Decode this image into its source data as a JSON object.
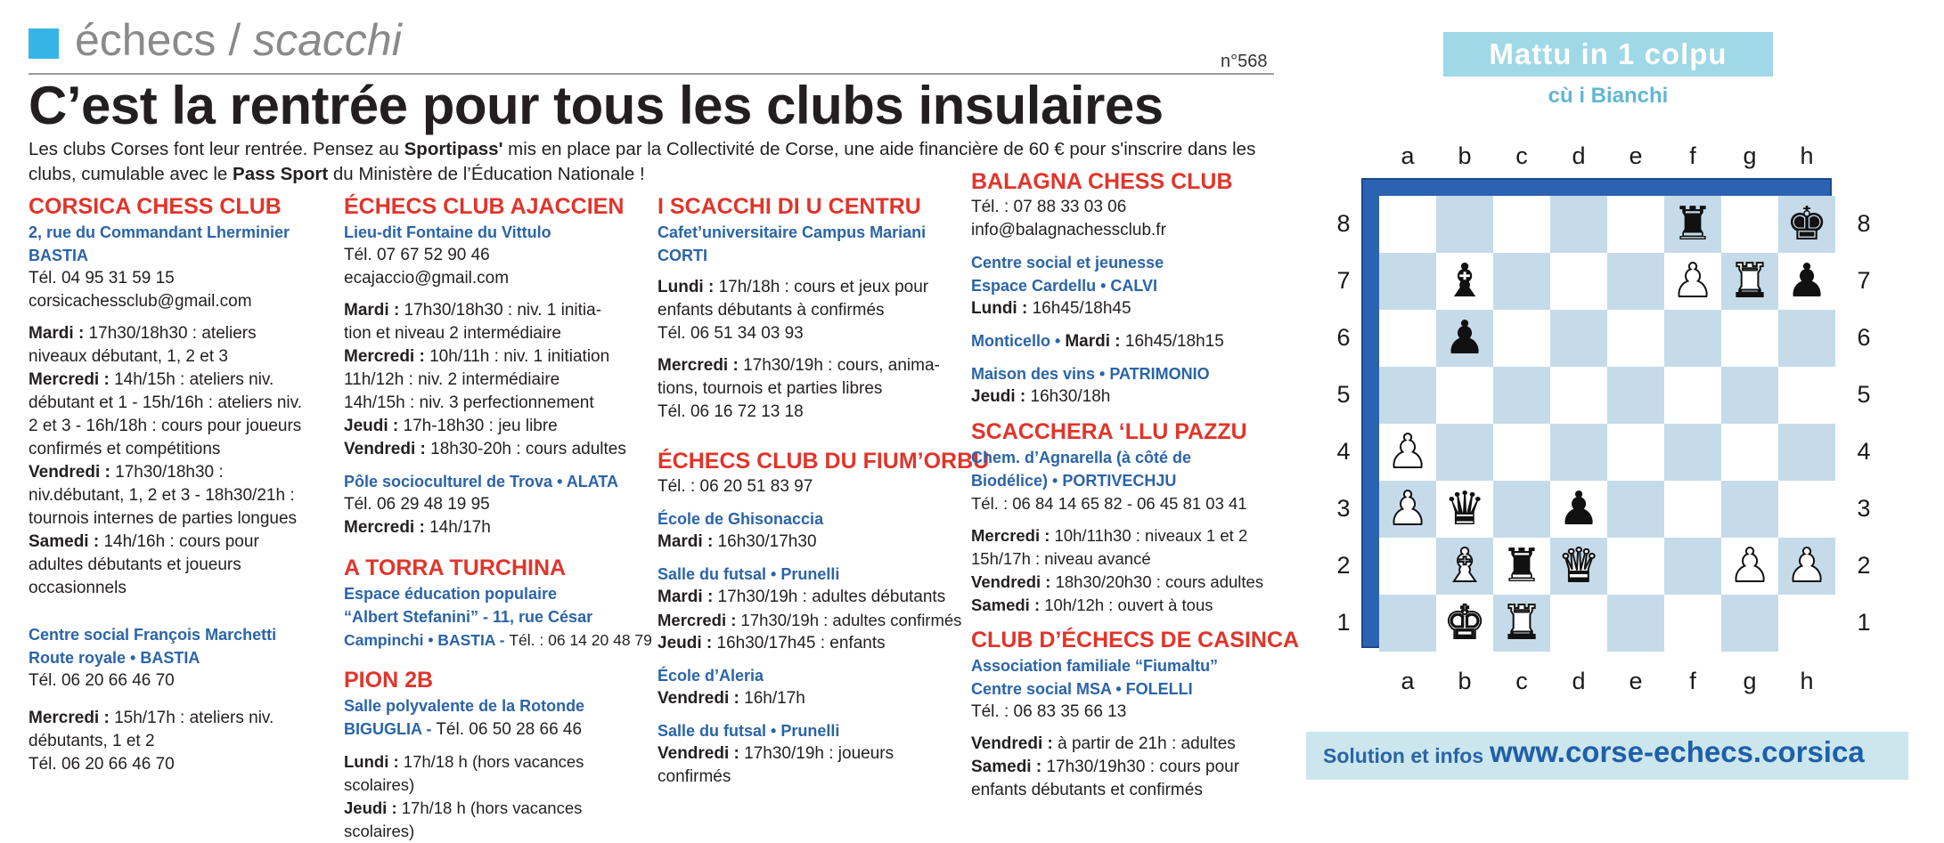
{
  "header": {
    "rubric_fr": "échecs",
    "rubric_sep": " / ",
    "rubric_it": "scacchi",
    "issue": "n°568",
    "headline": "C’est la rentrée pour tous les clubs insulaires"
  },
  "intro": {
    "t1": "Les clubs Corses font leur rentrée. Pensez au ",
    "b1": "Sportipass'",
    "t2": " mis en place par la Collectivité de Corse, une aide financière de 60 € pour s'inscrire dans les clubs, cumulable avec le ",
    "b2": "Pass Sport",
    "t3": " du Ministère de l’Éducation Nationale !"
  },
  "col1": {
    "name": "CORSICA CHESS CLUB",
    "addr1": "2, rue du Commandant Lherminier",
    "addr2": "BASTIA",
    "tel": "Tél. 04 95 31 59 15",
    "email": "corsicachessclub@gmail.com",
    "s1_day": "Mardi :",
    "s1_text": " 17h30/18h30 : ateliers",
    "s1_l2": "niveaux débutant, 1, 2 et 3",
    "s2_day": "Mercredi :",
    "s2_text": " 14h/15h : ateliers niv.",
    "s2_l2": "débutant et 1 - 15h/16h : ateliers niv.",
    "s2_l3": "2 et 3 - 16h/18h : cours pour joueurs",
    "s2_l4": "confirmés et compétitions",
    "s3_day": "Vendredi :",
    "s3_text": " 17h30/18h30 :",
    "s3_l2": "niv.débutant, 1, 2 et 3 - 18h30/21h :",
    "s3_l3": "tournois internes de parties longues",
    "s4_day": "Samedi :",
    "s4_text": " 14h/16h : cours pour",
    "s4_l2": "adultes débutants et joueurs",
    "s4_l3": "occasionnels",
    "loc2_l1": "Centre social François Marchetti",
    "loc2_l2": "Route royale • BASTIA",
    "loc2_tel": "Tél. 06 20 66 46 70",
    "s5_day": "Mercredi :",
    "s5_text": " 15h/17h : ateliers niv.",
    "s5_l2": "débutants, 1 et 2",
    "s5_tel": "Tél. 06 20 66 46 70"
  },
  "col2": {
    "name": "ÉCHECS CLUB AJACCIEN",
    "addr": "Lieu-dit Fontaine du Vittulo",
    "tel": "Tél. 07 67 52 90 46",
    "email": "ecajaccio@gmail.com",
    "s1_day": "Mardi :",
    "s1_text": " 17h30/18h30 : niv. 1 initia-",
    "s1_l2": "tion et niveau 2 intermédiaire",
    "s2_day": "Mercredi :",
    "s2_text": " 10h/11h : niv. 1 initiation",
    "s2_l2": "11h/12h : niv. 2 intermédiaire",
    "s2_l3": "14h/15h : niv. 3 perfectionnement",
    "s3_day": "Jeudi :",
    "s3_text": " 17h-18h30 : jeu libre",
    "s4_day": "Vendredi :",
    "s4_text": " 18h30-20h : cours adultes",
    "loc2": "Pôle socioculturel de Trova • ALATA",
    "loc2_tel": "Tél. 06 29 48 19 95",
    "loc2_s_day": "Mercredi :",
    "loc2_s_text": " 14h/17h",
    "name2": "A TORRA TURCHINA",
    "c2_l1": "Espace éducation populaire",
    "c2_l2": "“Albert Stefanini” - 11, rue César",
    "c2_l3a": "Campinchi • BASTIA - ",
    "c2_l3b": "Tél. : 06 14 20 48 79",
    "name3": "PION 2B",
    "c3_l1": "Salle polyvalente de la Rotonde",
    "c3_l2a": "BIGUGLIA - ",
    "c3_l2b": "Tél. 06 50 28 66 46",
    "c3_s1_day": "Lundi :",
    "c3_s1_text": " 17h/18 h (hors vacances scolaires)",
    "c3_s2_day": "Jeudi :",
    "c3_s2_text": " 17h/18 h (hors vacances scolaires)"
  },
  "col3": {
    "name": "I SCACCHI DI U CENTRU",
    "addr1": "Cafet’universitaire Campus Mariani",
    "addr2": "CORTI",
    "s1_day": "Lundi :",
    "s1_text": " 17h/18h : cours et jeux pour",
    "s1_l2": "enfants débutants à confirmés",
    "s1_tel": "Tél. 06 51 34 03 93",
    "s2_day": "Mercredi :",
    "s2_text": " 17h30/19h : cours, anima-",
    "s2_l2": "tions, tournois et parties libres",
    "s2_tel": "Tél. 06 16 72 13 18",
    "name2": "ÉCHECS CLUB DU FIUM’ORBU",
    "tel2": "Tél. : 06 20 51 83 97",
    "l1": "École de Ghisonaccia",
    "l1_day": "Mardi :",
    "l1_text": " 16h30/17h30",
    "l2": "Salle du futsal • Prunelli",
    "l2_s1_day": "Mardi :",
    "l2_s1_text": " 17h30/19h : adultes débutants",
    "l2_s2_day": "Mercredi :",
    "l2_s2_text": " 17h30/19h : adultes confirmés",
    "l2_s3_day": "Jeudi :",
    "l2_s3_text": " 16h30/17h45 : enfants",
    "l3": "École d’Aleria",
    "l3_day": "Vendredi :",
    "l3_text": " 16h/17h",
    "l4": "Salle du futsal • Prunelli",
    "l4_day": "Vendredi :",
    "l4_text": " 17h30/19h : joueurs",
    "l4_l2": "confirmés"
  },
  "col4": {
    "name": "BALAGNA CHESS CLUB",
    "tel": "Tél. : 07 88 33 03 06",
    "email": "info@balagnachessclub.fr",
    "l1_a": "Centre social et jeunesse",
    "l1_b": "Espace Cardellu  • CALVI",
    "l1_day": "Lundi :",
    "l1_text": " 16h45/18h45",
    "l2_place": "Monticello • ",
    "l2_day": "Mardi :",
    "l2_text": " 16h45/18h15",
    "l3": "Maison des vins • PATRIMONIO",
    "l3_day": "Jeudi :",
    "l3_text": " 16h30/18h",
    "name2": "SCACCHERA ‘LLU PAZZU",
    "c2_l1": "Chem. d’Agnarella (à côté de",
    "c2_l2": "Biodélice) • PORTIVECHJU",
    "c2_tel": "Tél. : 06 84 14 65 82 - 06 45 81 03 41",
    "c2_s1_day": "Mercredi :",
    "c2_s1_text": " 10h/11h30 : niveaux 1 et 2",
    "c2_s1_l2": "15h/17h : niveau avancé",
    "c2_s2_day": "Vendredi :",
    "c2_s2_text": " 18h30/20h30 : cours adultes",
    "c2_s3_day": "Samedi :",
    "c2_s3_text": " 10h/12h : ouvert à tous",
    "name3": "CLUB D’ÉCHECS DE CASINCA",
    "c3_l1": "Association familiale “Fiumaltu”",
    "c3_l2": "Centre social MSA • FOLELLI",
    "c3_tel": "Tél. : 06 83 35 66 13",
    "c3_s1_day": "Vendredi :",
    "c3_s1_text": " à partir de 21h : adultes",
    "c3_s2_day": "Samedi :",
    "c3_s2_text": " 17h30/19h30 : cours pour",
    "c3_s2_l2": "enfants débutants et confirmés"
  },
  "puzzle": {
    "title": "Mattu in 1 colpu",
    "subtitle": "cù i Bianchi",
    "files": [
      "a",
      "b",
      "c",
      "d",
      "e",
      "f",
      "g",
      "h"
    ],
    "ranks": [
      "8",
      "7",
      "6",
      "5",
      "4",
      "3",
      "2",
      "1"
    ],
    "board": [
      [
        "",
        "",
        "",
        "",
        "",
        "r",
        "",
        "k"
      ],
      [
        "",
        "b",
        "",
        "",
        "",
        "P",
        "R",
        "p"
      ],
      [
        "",
        "p",
        "",
        "",
        "",
        "",
        "",
        ""
      ],
      [
        "",
        "",
        "",
        "",
        "",
        "",
        "",
        ""
      ],
      [
        "P",
        "",
        "",
        "",
        "",
        "",
        "",
        ""
      ],
      [
        "P",
        "q",
        "",
        "p",
        "",
        "",
        "",
        ""
      ],
      [
        "",
        "B",
        "r",
        "Q",
        "",
        "",
        "P",
        "P"
      ],
      [
        "",
        "K",
        "R",
        "",
        "",
        "",
        "",
        ""
      ]
    ],
    "solution_label": "Solution et infos",
    "solution_url": "www.corse-echecs.corsica"
  }
}
